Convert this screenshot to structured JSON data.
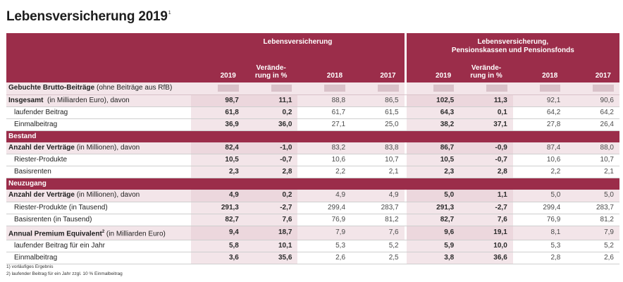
{
  "title": "Lebensversicherung 2019",
  "title_sup": "1",
  "header": {
    "group1": "Lebensversicherung",
    "group2_line1": "Lebensversicherung,",
    "group2_line2": "Pensionskassen und Pensionsfonds",
    "col_2019": "2019",
    "col_change": "Verände-\nrung in %",
    "col_2018": "2018",
    "col_2017": "2017"
  },
  "rows": [
    {
      "type": "sub",
      "label": "Gebuchte Brutto-Beiträge",
      "note": " (ohne Beiträge aus RfB)"
    },
    {
      "type": "main",
      "label": "Insgesamt",
      "note": "  (in Milliarden Euro), davon",
      "lv": [
        "98,7",
        "11,1",
        "88,8",
        "86,5"
      ],
      "all": [
        "102,5",
        "11,3",
        "92,1",
        "90,6"
      ]
    },
    {
      "type": "indent",
      "label": "laufender Beitrag",
      "lv": [
        "61,8",
        "0,2",
        "61,7",
        "61,5"
      ],
      "all": [
        "64,3",
        "0,1",
        "64,2",
        "64,2"
      ]
    },
    {
      "type": "indent",
      "label": "Einmalbeitrag",
      "lv": [
        "36,9",
        "36,0",
        "27,1",
        "25,0"
      ],
      "all": [
        "38,2",
        "37,1",
        "27,8",
        "26,4"
      ]
    },
    {
      "type": "section",
      "label": "Bestand"
    },
    {
      "type": "main",
      "label": "Anzahl der Verträge",
      "note": " (in Millionen), davon",
      "lv": [
        "82,4",
        "-1,0",
        "83,2",
        "83,8"
      ],
      "all": [
        "86,7",
        "-0,9",
        "87,4",
        "88,0"
      ]
    },
    {
      "type": "indent",
      "label": "Riester-Produkte",
      "lv": [
        "10,5",
        "-0,7",
        "10,6",
        "10,7"
      ],
      "all": [
        "10,5",
        "-0,7",
        "10,6",
        "10,7"
      ]
    },
    {
      "type": "indent",
      "label": "Basisrenten",
      "lv": [
        "2,3",
        "2,8",
        "2,2",
        "2,1"
      ],
      "all": [
        "2,3",
        "2,8",
        "2,2",
        "2,1"
      ]
    },
    {
      "type": "section",
      "label": "Neuzugang"
    },
    {
      "type": "main",
      "label": "Anzahl der Verträge",
      "note": " (in Millionen), davon",
      "lv": [
        "4,9",
        "0,2",
        "4,9",
        "4,9"
      ],
      "all": [
        "5,0",
        "1,1",
        "5,0",
        "5,0"
      ]
    },
    {
      "type": "indent",
      "label": "Riester-Produkte (in Tausend)",
      "lv": [
        "291,3",
        "-2,7",
        "299,4",
        "283,7"
      ],
      "all": [
        "291,3",
        "-2,7",
        "299,4",
        "283,7"
      ]
    },
    {
      "type": "indent",
      "label": "Basisrenten (in Tausend)",
      "lv": [
        "82,7",
        "7,6",
        "76,9",
        "81,2"
      ],
      "all": [
        "82,7",
        "7,6",
        "76,9",
        "81,2"
      ]
    },
    {
      "type": "main",
      "label": "Annual Premium Equivalent",
      "sup": "2",
      "note": " (in Milliarden Euro)",
      "lv": [
        "9,4",
        "18,7",
        "7,9",
        "7,6"
      ],
      "all": [
        "9,6",
        "19,1",
        "8,1",
        "7,9"
      ]
    },
    {
      "type": "indent",
      "label": "laufender Beitrag für ein Jahr",
      "lv": [
        "5,8",
        "10,1",
        "5,3",
        "5,2"
      ],
      "all": [
        "5,9",
        "10,0",
        "5,3",
        "5,2"
      ]
    },
    {
      "type": "indent",
      "label": "Einmalbeitrag",
      "lv": [
        "3,6",
        "35,6",
        "2,6",
        "2,5"
      ],
      "all": [
        "3,8",
        "36,6",
        "2,8",
        "2,6"
      ]
    }
  ],
  "footnotes": [
    "1)  vorläufiges Ergebnis",
    "2)  laufender Beitrag für ein Jahr zzgl. 10 % Einmalbeitrag"
  ],
  "colors": {
    "accent": "#9b2d4a",
    "tint": "#f3e5e9"
  }
}
